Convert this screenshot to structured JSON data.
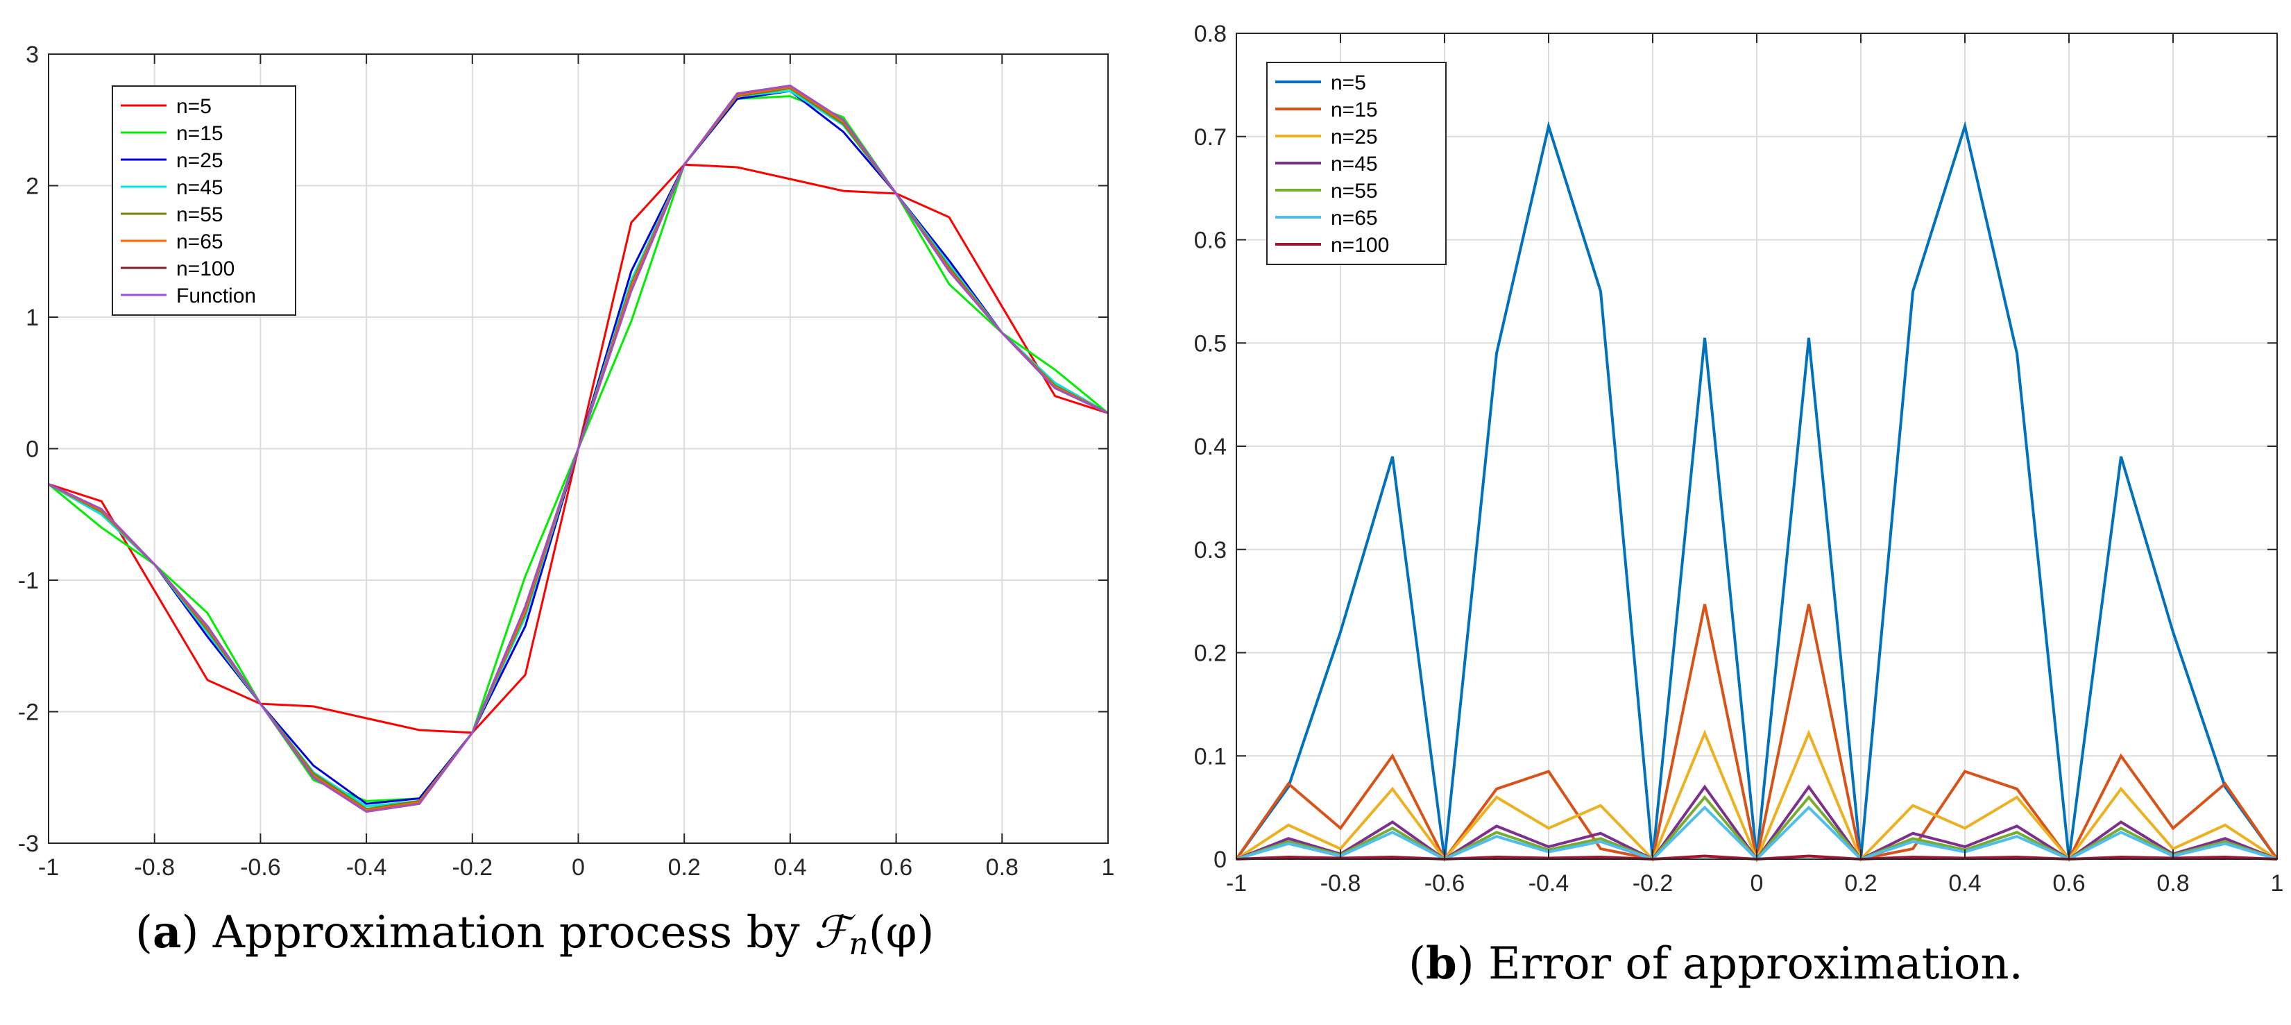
{
  "chart_data": [
    {
      "type": "line",
      "title": "",
      "caption_label": "a",
      "caption_open": "(",
      "caption_close": ")",
      "caption_text": "Approximation process by",
      "caption_math": "ℱ",
      "caption_math_sub": "n",
      "caption_math_arg": "(φ)",
      "xlim": [
        -1,
        1
      ],
      "ylim": [
        -3,
        3
      ],
      "xticks": [
        -1,
        -0.8,
        -0.6,
        -0.4,
        -0.2,
        0,
        0.2,
        0.4,
        0.6,
        0.8,
        1
      ],
      "xtick_labels": [
        "-1",
        "-0.8",
        "-0.6",
        "-0.4",
        "-0.2",
        "0",
        "0.2",
        "0.4",
        "0.6",
        "0.8",
        "1"
      ],
      "yticks": [
        -3,
        -2,
        -1,
        0,
        1,
        2,
        3
      ],
      "ytick_labels": [
        "-3",
        "-2",
        "-1",
        "0",
        "1",
        "2",
        "3"
      ],
      "legend_position": "top-left",
      "x": [
        -1,
        -0.9,
        -0.8,
        -0.7,
        -0.6,
        -0.5,
        -0.4,
        -0.3,
        -0.2,
        -0.1,
        0,
        0.1,
        0.2,
        0.3,
        0.4,
        0.5,
        0.6,
        0.7,
        0.8,
        0.9,
        1
      ],
      "series": [
        {
          "name": "n=5",
          "color": "#ff0000",
          "values": [
            -0.27,
            -0.4,
            -1.08,
            -1.76,
            -1.94,
            -1.96,
            -2.05,
            -2.14,
            -2.16,
            -1.72,
            0,
            1.72,
            2.16,
            2.14,
            2.05,
            1.96,
            1.94,
            1.76,
            1.08,
            0.4,
            0.27
          ]
        },
        {
          "name": "n=15",
          "color": "#00ee00",
          "values": [
            -0.27,
            -0.6,
            -0.88,
            -1.25,
            -1.94,
            -2.52,
            -2.68,
            -2.66,
            -2.16,
            -0.97,
            0,
            0.97,
            2.16,
            2.66,
            2.68,
            2.52,
            1.94,
            1.25,
            0.88,
            0.6,
            0.27
          ]
        },
        {
          "name": "n=25",
          "color": "#0000dd",
          "values": [
            -0.27,
            -0.5,
            -0.88,
            -1.43,
            -1.94,
            -2.41,
            -2.7,
            -2.66,
            -2.16,
            -1.35,
            0,
            1.35,
            2.16,
            2.66,
            2.72,
            2.41,
            1.94,
            1.43,
            0.88,
            0.5,
            0.27
          ]
        },
        {
          "name": "n=45",
          "color": "#00e5e5",
          "values": [
            -0.27,
            -0.5,
            -0.88,
            -1.4,
            -1.94,
            -2.46,
            -2.72,
            -2.68,
            -2.16,
            -1.28,
            0,
            1.28,
            2.16,
            2.68,
            2.72,
            2.46,
            1.94,
            1.4,
            0.88,
            0.5,
            0.27
          ]
        },
        {
          "name": "n=55",
          "color": "#7f7f00",
          "values": [
            -0.27,
            -0.48,
            -0.88,
            -1.38,
            -1.94,
            -2.47,
            -2.74,
            -2.68,
            -2.16,
            -1.25,
            0,
            1.25,
            2.16,
            2.68,
            2.74,
            2.47,
            1.94,
            1.38,
            0.88,
            0.48,
            0.27
          ]
        },
        {
          "name": "n=65",
          "color": "#ff6600",
          "values": [
            -0.27,
            -0.47,
            -0.88,
            -1.36,
            -1.94,
            -2.49,
            -2.75,
            -2.69,
            -2.16,
            -1.23,
            0,
            1.23,
            2.16,
            2.69,
            2.75,
            2.49,
            1.94,
            1.36,
            0.88,
            0.47,
            0.27
          ]
        },
        {
          "name": "n=100",
          "color": "#7f1f1f",
          "values": [
            -0.27,
            -0.46,
            -0.88,
            -1.35,
            -1.94,
            -2.5,
            -2.76,
            -2.7,
            -2.16,
            -1.2,
            0,
            1.2,
            2.16,
            2.7,
            2.76,
            2.5,
            1.94,
            1.35,
            0.88,
            0.46,
            0.27
          ]
        },
        {
          "name": "Function",
          "color": "#a050c8",
          "values": [
            -0.27,
            -0.46,
            -0.88,
            -1.35,
            -1.94,
            -2.5,
            -2.76,
            -2.7,
            -2.16,
            -1.2,
            0,
            1.2,
            2.16,
            2.7,
            2.76,
            2.5,
            1.94,
            1.35,
            0.88,
            0.46,
            0.27
          ]
        }
      ]
    },
    {
      "type": "line",
      "title": "",
      "caption_label": "b",
      "caption_open": "(",
      "caption_close": ")",
      "caption_text": "Error of approximation.",
      "xlim": [
        -1,
        1
      ],
      "ylim": [
        0,
        0.8
      ],
      "xticks": [
        -1,
        -0.8,
        -0.6,
        -0.4,
        -0.2,
        0,
        0.2,
        0.4,
        0.6,
        0.8,
        1
      ],
      "xtick_labels": [
        "-1",
        "-0.8",
        "-0.6",
        "-0.4",
        "-0.2",
        "0",
        "0.2",
        "0.4",
        "0.6",
        "0.8",
        "1"
      ],
      "yticks": [
        0,
        0.1,
        0.2,
        0.3,
        0.4,
        0.5,
        0.6,
        0.7,
        0.8
      ],
      "ytick_labels": [
        "0",
        "0.1",
        "0.2",
        "0.3",
        "0.4",
        "0.5",
        "0.6",
        "0.7",
        "0.8"
      ],
      "legend_position": "top-left",
      "x": [
        -1,
        -0.9,
        -0.8,
        -0.7,
        -0.6,
        -0.5,
        -0.4,
        -0.3,
        -0.2,
        -0.1,
        0,
        0.1,
        0.2,
        0.3,
        0.4,
        0.5,
        0.6,
        0.7,
        0.8,
        0.9,
        1
      ],
      "series": [
        {
          "name": "n=5",
          "color": "#0072bd",
          "values": [
            0,
            0.07,
            0.22,
            0.39,
            0,
            0.49,
            0.71,
            0.55,
            0,
            0.505,
            0,
            0.505,
            0,
            0.55,
            0.71,
            0.49,
            0,
            0.39,
            0.22,
            0.07,
            0
          ]
        },
        {
          "name": "n=15",
          "color": "#d95319",
          "values": [
            0,
            0.073,
            0.03,
            0.1,
            0,
            0.068,
            0.085,
            0.01,
            0,
            0.247,
            0,
            0.247,
            0,
            0.01,
            0.085,
            0.068,
            0,
            0.1,
            0.03,
            0.073,
            0
          ]
        },
        {
          "name": "n=25",
          "color": "#edb120",
          "values": [
            0,
            0.033,
            0.01,
            0.068,
            0,
            0.06,
            0.03,
            0.052,
            0,
            0.122,
            0,
            0.122,
            0,
            0.052,
            0.03,
            0.06,
            0,
            0.068,
            0.01,
            0.033,
            0
          ]
        },
        {
          "name": "n=45",
          "color": "#7e2f8e",
          "values": [
            0,
            0.02,
            0.005,
            0.036,
            0,
            0.032,
            0.012,
            0.025,
            0,
            0.07,
            0,
            0.07,
            0,
            0.025,
            0.012,
            0.032,
            0,
            0.036,
            0.005,
            0.02,
            0
          ]
        },
        {
          "name": "n=55",
          "color": "#77ac30",
          "values": [
            0,
            0.017,
            0.004,
            0.03,
            0,
            0.026,
            0.009,
            0.02,
            0,
            0.06,
            0,
            0.06,
            0,
            0.02,
            0.009,
            0.026,
            0,
            0.03,
            0.004,
            0.017,
            0
          ]
        },
        {
          "name": "n=65",
          "color": "#4dbeee",
          "values": [
            0,
            0.015,
            0.003,
            0.026,
            0,
            0.022,
            0.007,
            0.017,
            0,
            0.05,
            0,
            0.05,
            0,
            0.017,
            0.007,
            0.022,
            0,
            0.026,
            0.003,
            0.015,
            0
          ]
        },
        {
          "name": "n=100",
          "color": "#a2142f",
          "values": [
            0,
            0.002,
            0.001,
            0.002,
            0,
            0.002,
            0.001,
            0.002,
            0,
            0.003,
            0,
            0.003,
            0,
            0.002,
            0.001,
            0.002,
            0,
            0.002,
            0.001,
            0.002,
            0
          ]
        }
      ]
    }
  ]
}
